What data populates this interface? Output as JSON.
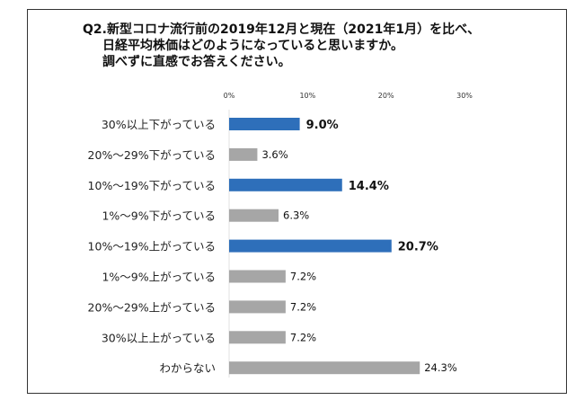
{
  "chart_data": {
    "type": "bar",
    "orientation": "horizontal",
    "title_lines": [
      "Q2.新型コロナ流行前の2019年12月と現在（2021年1月）を比べ、",
      "日経平均株価はどのようになっていると思いますか。",
      "調べずに直感でお答えください。"
    ],
    "categories": [
      "30%以上下がっている",
      "20%～29%下がっている",
      "10%～19%下がっている",
      "1%～9%下がっている",
      "10%～19%上がっている",
      "1%～9%上がっている",
      "20%～29%上がっている",
      "30%以上上がっている",
      "わからない"
    ],
    "values": [
      9.0,
      3.6,
      14.4,
      6.3,
      20.7,
      7.2,
      7.2,
      7.2,
      24.3
    ],
    "data_labels": [
      "9.0%",
      "3.6%",
      "14.4%",
      "6.3%",
      "20.7%",
      "7.2%",
      "7.2%",
      "7.2%",
      "24.3%"
    ],
    "highlighted": [
      true,
      false,
      true,
      false,
      true,
      false,
      false,
      false,
      false
    ],
    "xticks": [
      "0%",
      "10%",
      "20%",
      "30%"
    ],
    "xtick_values": [
      0,
      10,
      20,
      30
    ],
    "xlim": [
      0,
      30
    ],
    "axis_position": "top",
    "grid": false,
    "colors": {
      "highlight": "#2e6fba",
      "default": "#a6a6a6"
    }
  }
}
